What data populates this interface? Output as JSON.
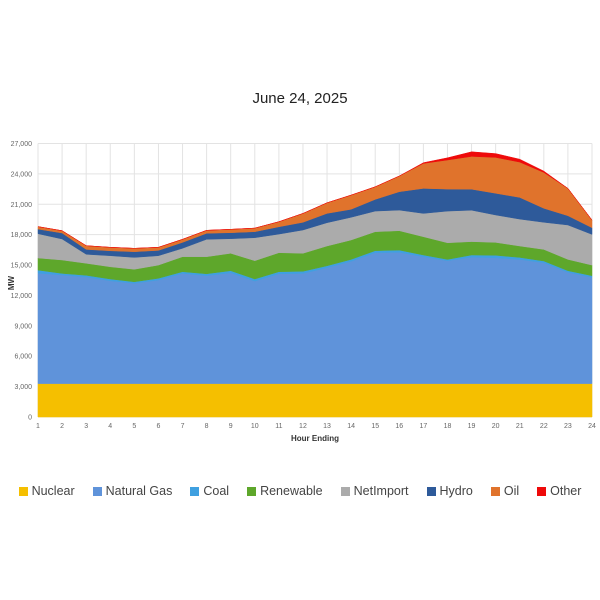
{
  "chart_data": {
    "type": "area",
    "stacked": true,
    "title": "June 24, 2025",
    "xlabel": "Hour Ending",
    "ylabel": "MW",
    "ylim": [
      0,
      27000
    ],
    "yticks": [
      0,
      3000,
      6000,
      9000,
      12000,
      15000,
      18000,
      21000,
      24000,
      27000
    ],
    "ytick_labels": [
      "0",
      "3,000",
      "6,000",
      "9,000",
      "12,000",
      "15,000",
      "18,000",
      "21,000",
      "24,000",
      "27,000"
    ],
    "grid": true,
    "legend_position": "bottom",
    "categories": [
      "1",
      "2",
      "3",
      "4",
      "5",
      "6",
      "7",
      "8",
      "9",
      "10",
      "11",
      "12",
      "13",
      "14",
      "15",
      "16",
      "17",
      "18",
      "19",
      "20",
      "21",
      "22",
      "23",
      "24"
    ],
    "series": [
      {
        "name": "Nuclear",
        "color": "#F5BF00",
        "values": [
          3300,
          3300,
          3300,
          3300,
          3300,
          3300,
          3300,
          3300,
          3300,
          3300,
          3300,
          3300,
          3300,
          3300,
          3300,
          3300,
          3300,
          3300,
          3300,
          3300,
          3300,
          3300,
          3300,
          3300
        ]
      },
      {
        "name": "Natural Gas",
        "color": "#5F93DA",
        "values": [
          10900,
          10720,
          10520,
          10150,
          9900,
          10220,
          10880,
          10650,
          10940,
          10120,
          10840,
          10880,
          11440,
          12070,
          12920,
          12960,
          12520,
          12130,
          12490,
          12420,
          12260,
          11930,
          10980,
          10490
        ]
      },
      {
        "name": "Coal",
        "color": "#3FA0E0",
        "values": [
          300,
          160,
          170,
          170,
          150,
          170,
          160,
          190,
          200,
          200,
          200,
          200,
          190,
          190,
          200,
          220,
          170,
          130,
          200,
          240,
          200,
          170,
          160,
          160
        ]
      },
      {
        "name": "Renewable",
        "color": "#5EA72B",
        "values": [
          1200,
          1320,
          1180,
          1210,
          1230,
          1310,
          1480,
          1680,
          1720,
          1810,
          1880,
          1780,
          1950,
          1910,
          1870,
          1910,
          1810,
          1640,
          1330,
          1280,
          1120,
          1150,
          1120,
          1050
        ]
      },
      {
        "name": "NetImport",
        "color": "#ABABAB",
        "values": [
          2400,
          2070,
          890,
          1090,
          1180,
          920,
          830,
          1720,
          1440,
          2270,
          1840,
          2300,
          2300,
          2240,
          2040,
          2040,
          2300,
          3130,
          3100,
          2700,
          2660,
          2670,
          3390,
          3030
        ]
      },
      {
        "name": "Hydro",
        "color": "#2E5A9A",
        "values": [
          450,
          590,
          490,
          490,
          560,
          530,
          590,
          590,
          590,
          590,
          720,
          760,
          920,
          790,
          1150,
          1810,
          2470,
          2170,
          2070,
          2140,
          2140,
          1380,
          920,
          660
        ]
      },
      {
        "name": "Oil",
        "color": "#E0732C",
        "values": [
          250,
          230,
          360,
          340,
          330,
          300,
          300,
          300,
          340,
          360,
          500,
          880,
          1050,
          1410,
          1250,
          1550,
          2470,
          2870,
          3240,
          3550,
          3480,
          3550,
          2700,
          750
        ]
      },
      {
        "name": "Other",
        "color": "#EE0A0A",
        "values": [
          0,
          0,
          0,
          0,
          0,
          0,
          0,
          0,
          0,
          0,
          0,
          0,
          0,
          0,
          0,
          0,
          60,
          220,
          450,
          370,
          290,
          130,
          0,
          0
        ]
      }
    ]
  }
}
